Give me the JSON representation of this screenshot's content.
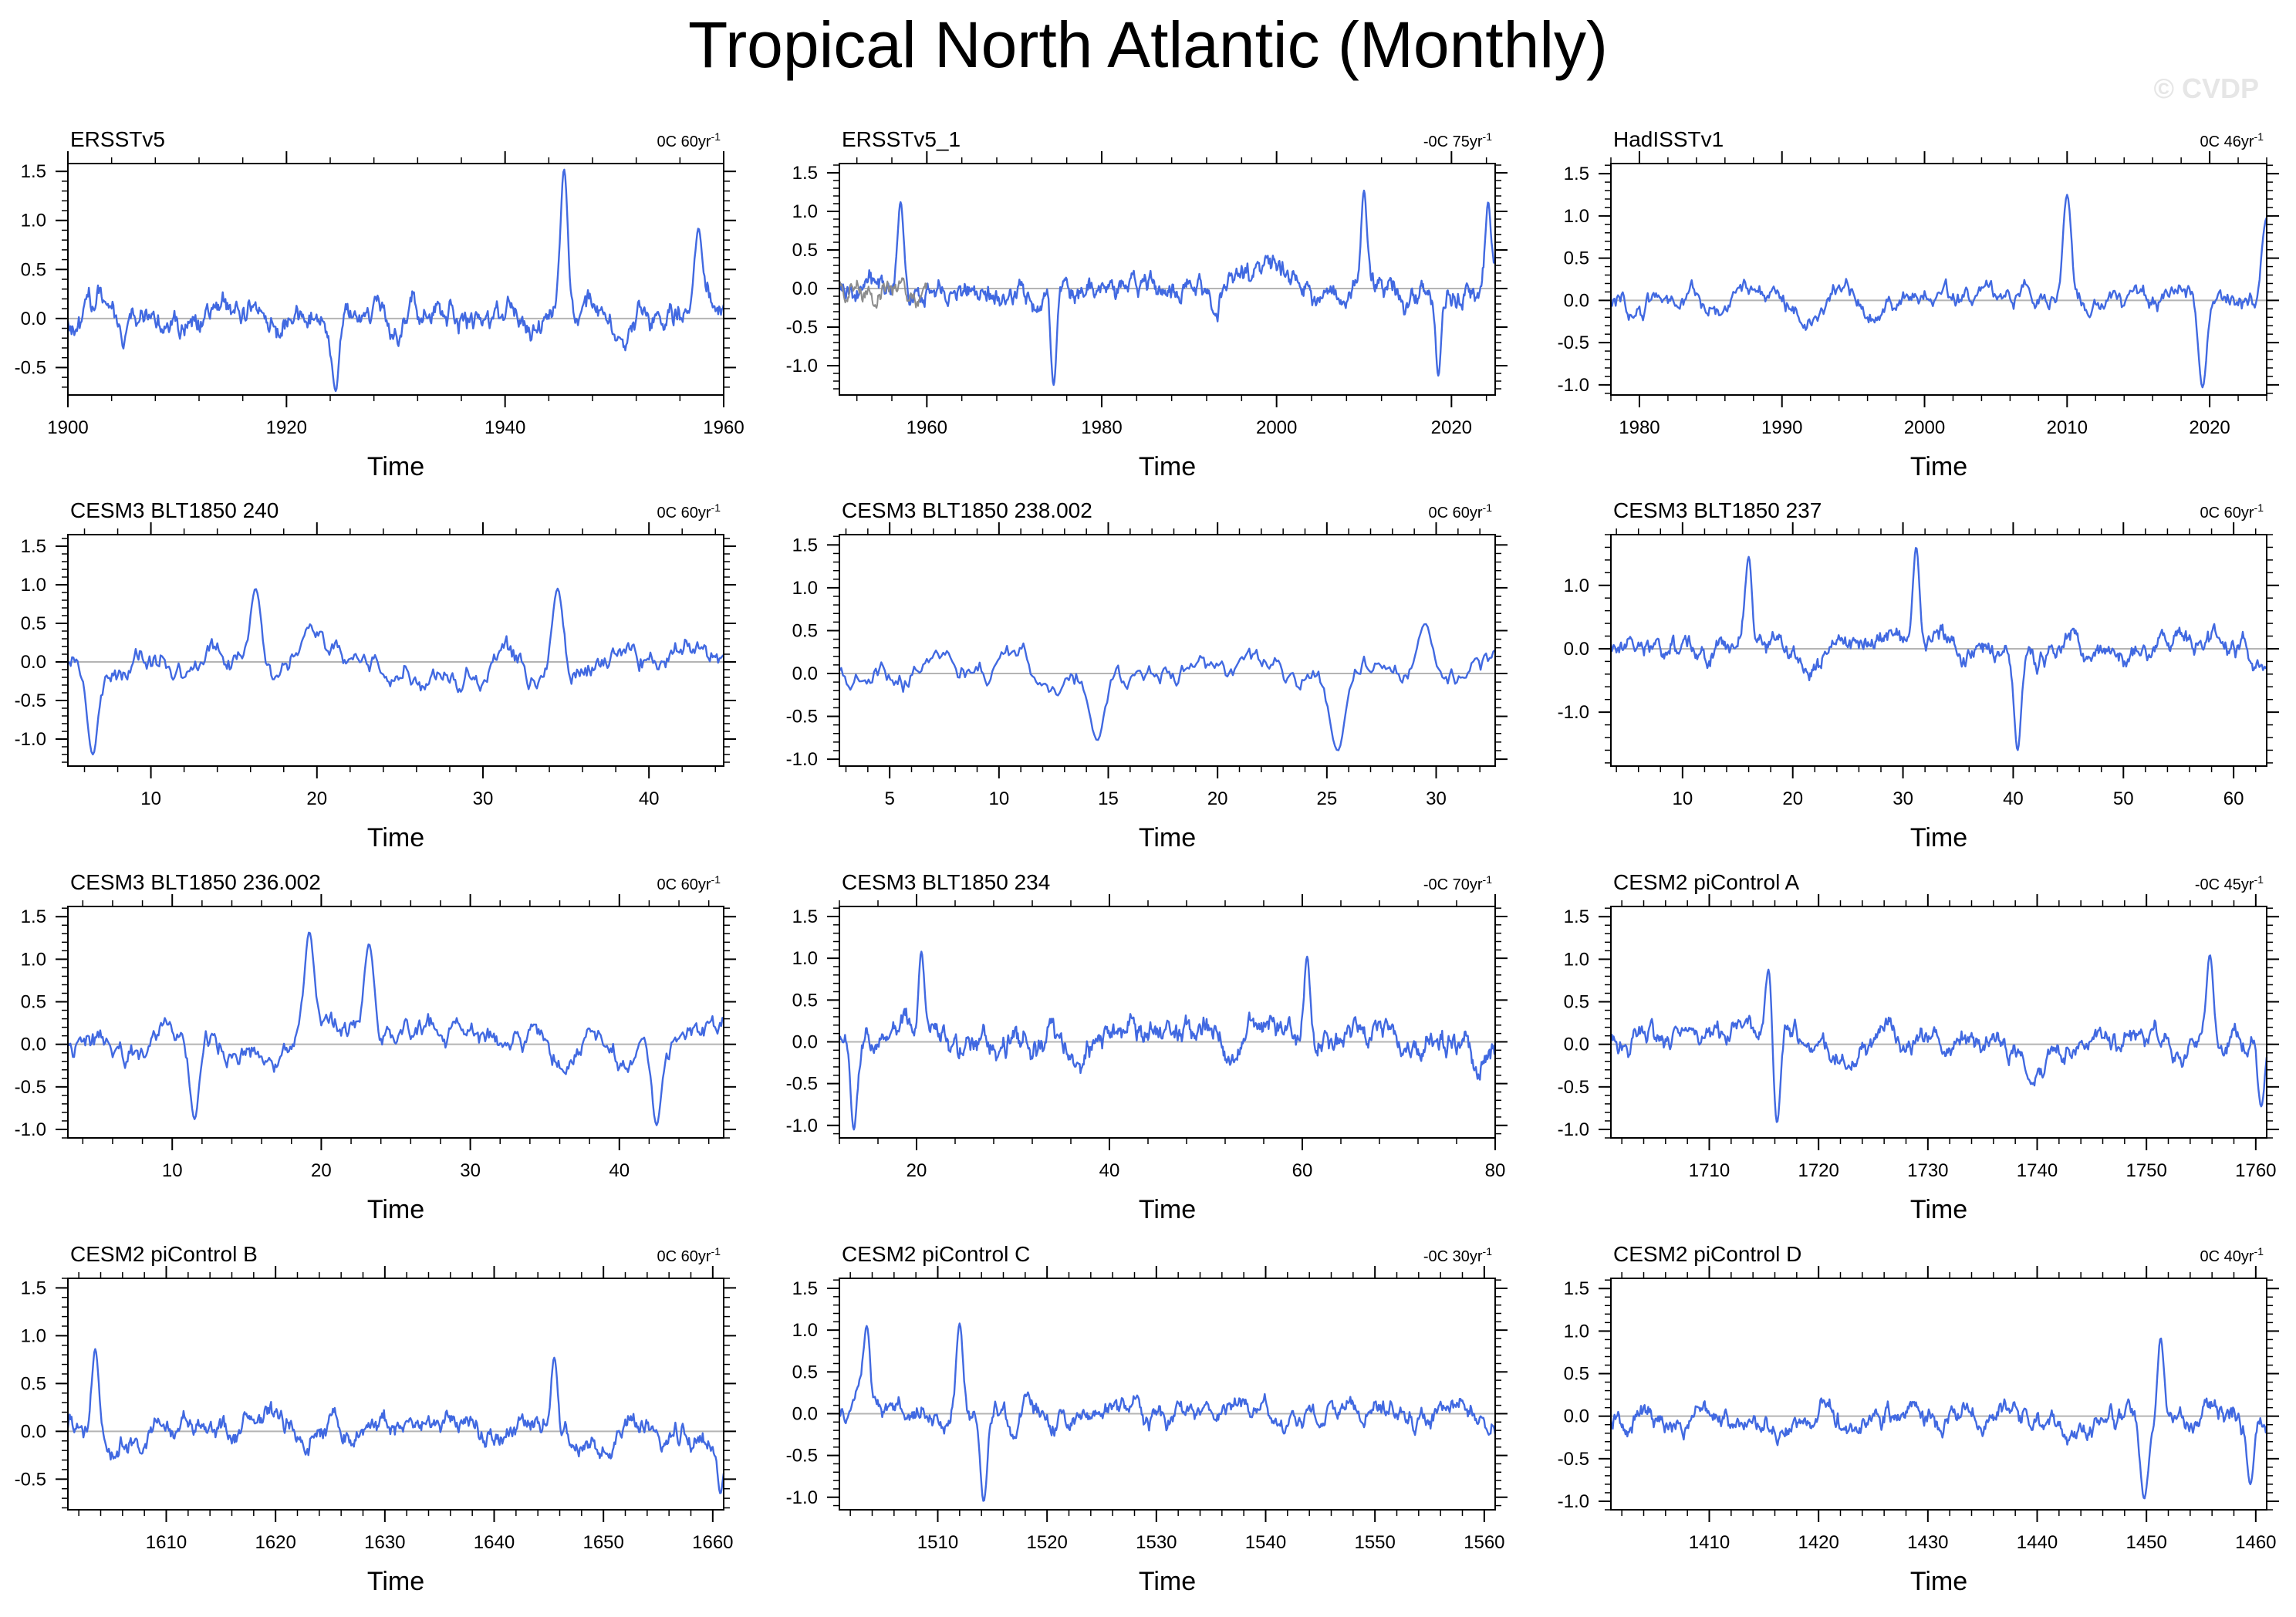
{
  "figure": {
    "title": "Tropical North Atlantic (Monthly)",
    "watermark": "© CVDP",
    "colors": {
      "line": "#4169e1",
      "zero_line": "#b4b4b4",
      "secondary_line": "#8c8c8c",
      "axis": "#000000"
    }
  },
  "chart_data": [
    {
      "type": "line",
      "title": "ERSSTv5",
      "trend": "0C 60yr",
      "trend_sup": "-1",
      "xlabel": "Time",
      "xlim": [
        1900,
        1960
      ],
      "ylim": [
        -0.78,
        1.58
      ],
      "xticks": [
        1900,
        1920,
        1940,
        1960
      ],
      "yticks": [
        -0.5,
        0.0,
        0.5,
        1.0,
        1.5
      ],
      "series": [
        {
          "name": "ERSSTv5",
          "amplitude": 0.32,
          "spikes": [
            [
              1945.4,
              1.52
            ],
            [
              1957.7,
              0.92
            ],
            [
              1924.5,
              -0.74
            ]
          ]
        }
      ]
    },
    {
      "type": "line",
      "title": "ERSSTv5_1",
      "trend": "-0C 75yr",
      "trend_sup": "-1",
      "xlabel": "Time",
      "xlim": [
        1950,
        2025
      ],
      "ylim": [
        -1.38,
        1.62
      ],
      "xticks": [
        1960,
        1980,
        2000,
        2020
      ],
      "yticks": [
        -1.0,
        -0.5,
        0.0,
        0.5,
        1.0,
        1.5
      ],
      "series": [
        {
          "name": "ERSSTv5_1",
          "amplitude": 0.33,
          "spikes": [
            [
              2010,
              1.27
            ],
            [
              2024.2,
              1.12
            ],
            [
              1957,
              1.12
            ],
            [
              1974.5,
              -1.25
            ],
            [
              2018.5,
              -1.13
            ]
          ]
        },
        {
          "name": "overlap",
          "amplitude": 0.3,
          "x_range": [
            1950,
            1960
          ]
        }
      ]
    },
    {
      "type": "line",
      "title": "HadISSTv1",
      "trend": "0C 46yr",
      "trend_sup": "-1",
      "xlabel": "Time",
      "xlim": [
        1978,
        2024
      ],
      "ylim": [
        -1.12,
        1.62
      ],
      "xticks": [
        1980,
        1990,
        2000,
        2010,
        2020
      ],
      "yticks": [
        -1.0,
        -0.5,
        0.0,
        0.5,
        1.0,
        1.5
      ],
      "series": [
        {
          "name": "HadISSTv1",
          "amplitude": 0.3,
          "spikes": [
            [
              2010,
              1.25
            ],
            [
              2019.5,
              -1.03
            ],
            [
              2024,
              0.98
            ]
          ]
        }
      ]
    },
    {
      "type": "line",
      "title": "CESM3 BLT1850 240",
      "trend": "0C 60yr",
      "trend_sup": "-1",
      "xlabel": "Time",
      "xlim": [
        5,
        44.5
      ],
      "ylim": [
        -1.35,
        1.65
      ],
      "xticks": [
        10,
        20,
        30,
        40
      ],
      "yticks": [
        -1.0,
        -0.5,
        0.0,
        0.5,
        1.0,
        1.5
      ],
      "series": [
        {
          "name": "CESM3 BLT1850 240",
          "amplitude": 0.38,
          "spikes": [
            [
              6.5,
              -1.2
            ],
            [
              16.3,
              0.95
            ],
            [
              34.5,
              0.95
            ]
          ]
        }
      ]
    },
    {
      "type": "line",
      "title": "CESM3 BLT1850 238.002",
      "trend": "0C 60yr",
      "trend_sup": "-1",
      "xlabel": "Time",
      "xlim": [
        2.7,
        32.7
      ],
      "ylim": [
        -1.08,
        1.62
      ],
      "xticks": [
        5,
        10,
        15,
        20,
        25,
        30
      ],
      "yticks": [
        -1.0,
        -0.5,
        0.0,
        0.5,
        1.0,
        1.5
      ],
      "series": [
        {
          "name": "CESM3 BLT1850 238.002",
          "amplitude": 0.33,
          "spikes": [
            [
              25.5,
              -0.9
            ],
            [
              14.5,
              -0.78
            ],
            [
              29.5,
              0.58
            ]
          ]
        }
      ]
    },
    {
      "type": "line",
      "title": "CESM3 BLT1850 237",
      "trend": "0C 60yr",
      "trend_sup": "-1",
      "xlabel": "Time",
      "xlim": [
        3.5,
        63
      ],
      "ylim": [
        -1.85,
        1.8
      ],
      "xticks": [
        10,
        20,
        30,
        40,
        50,
        60
      ],
      "yticks": [
        -1.0,
        0.0,
        1.0
      ],
      "series": [
        {
          "name": "CESM3 BLT1850 237",
          "amplitude": 0.38,
          "spikes": [
            [
              31.2,
              1.6
            ],
            [
              16,
              1.45
            ],
            [
              40.4,
              -1.6
            ]
          ]
        }
      ]
    },
    {
      "type": "line",
      "title": "CESM3 BLT1850 236.002",
      "trend": "0C 60yr",
      "trend_sup": "-1",
      "xlabel": "Time",
      "xlim": [
        3,
        47
      ],
      "ylim": [
        -1.1,
        1.62
      ],
      "xticks": [
        10,
        20,
        30,
        40
      ],
      "yticks": [
        -1.0,
        -0.5,
        0.0,
        0.5,
        1.0,
        1.5
      ],
      "series": [
        {
          "name": "CESM3 BLT1850 236.002",
          "amplitude": 0.33,
          "spikes": [
            [
              19.2,
              1.32
            ],
            [
              23.2,
              1.18
            ],
            [
              42.5,
              -0.95
            ],
            [
              11.5,
              -0.88
            ]
          ]
        }
      ]
    },
    {
      "type": "line",
      "title": "CESM3 BLT1850 234",
      "trend": "-0C 70yr",
      "trend_sup": "-1",
      "xlabel": "Time",
      "xlim": [
        12,
        80
      ],
      "ylim": [
        -1.15,
        1.62
      ],
      "xticks": [
        20,
        40,
        60,
        80
      ],
      "yticks": [
        -1.0,
        -0.5,
        0.0,
        0.5,
        1.0,
        1.5
      ],
      "series": [
        {
          "name": "CESM3 BLT1850 234",
          "amplitude": 0.35,
          "spikes": [
            [
              20.5,
              1.08
            ],
            [
              13.5,
              -1.05
            ],
            [
              60.5,
              1.02
            ]
          ]
        }
      ]
    },
    {
      "type": "line",
      "title": "CESM2 piControl A",
      "trend": "-0C 45yr",
      "trend_sup": "-1",
      "xlabel": "Time",
      "xlim": [
        1701,
        1761
      ],
      "ylim": [
        -1.1,
        1.62
      ],
      "xticks": [
        1710,
        1720,
        1730,
        1740,
        1750,
        1760
      ],
      "yticks": [
        -1.0,
        -0.5,
        0.0,
        0.5,
        1.0,
        1.5
      ],
      "series": [
        {
          "name": "CESM2 piControl A",
          "amplitude": 0.3,
          "spikes": [
            [
              1715.5,
              1.0
            ],
            [
              1716.2,
              -0.92
            ],
            [
              1755.8,
              1.05
            ],
            [
              1760.5,
              -0.73
            ]
          ]
        }
      ]
    },
    {
      "type": "line",
      "title": "CESM2 piControl B",
      "trend": "0C 60yr",
      "trend_sup": "-1",
      "xlabel": "Time",
      "xlim": [
        1601,
        1661
      ],
      "ylim": [
        -0.82,
        1.6
      ],
      "xticks": [
        1610,
        1620,
        1630,
        1640,
        1650,
        1660
      ],
      "yticks": [
        -0.5,
        0.0,
        0.5,
        1.0,
        1.5
      ],
      "series": [
        {
          "name": "CESM2 piControl B",
          "amplitude": 0.27,
          "spikes": [
            [
              1603.5,
              0.86
            ],
            [
              1645.5,
              0.77
            ],
            [
              1660.7,
              -0.65
            ]
          ]
        }
      ]
    },
    {
      "type": "line",
      "title": "CESM2 piControl C",
      "trend": "-0C 30yr",
      "trend_sup": "-1",
      "xlabel": "Time",
      "xlim": [
        1501,
        1561
      ],
      "ylim": [
        -1.15,
        1.62
      ],
      "xticks": [
        1510,
        1520,
        1530,
        1540,
        1550,
        1560
      ],
      "yticks": [
        -1.0,
        -0.5,
        0.0,
        0.5,
        1.0,
        1.5
      ],
      "series": [
        {
          "name": "CESM2 piControl C",
          "amplitude": 0.3,
          "spikes": [
            [
              1503.5,
              1.05
            ],
            [
              1512,
              1.08
            ],
            [
              1514.2,
              -1.05
            ]
          ]
        }
      ]
    },
    {
      "type": "line",
      "title": "CESM2 piControl D",
      "trend": "0C 40yr",
      "trend_sup": "-1",
      "xlabel": "Time",
      "xlim": [
        1401,
        1461
      ],
      "ylim": [
        -1.1,
        1.62
      ],
      "xticks": [
        1410,
        1420,
        1430,
        1440,
        1450,
        1460
      ],
      "yticks": [
        -1.0,
        -0.5,
        0.0,
        0.5,
        1.0,
        1.5
      ],
      "series": [
        {
          "name": "CESM2 piControl D",
          "amplitude": 0.3,
          "spikes": [
            [
              1451.3,
              0.92
            ],
            [
              1449.8,
              -0.97
            ],
            [
              1459.5,
              -0.8
            ]
          ]
        }
      ]
    }
  ]
}
